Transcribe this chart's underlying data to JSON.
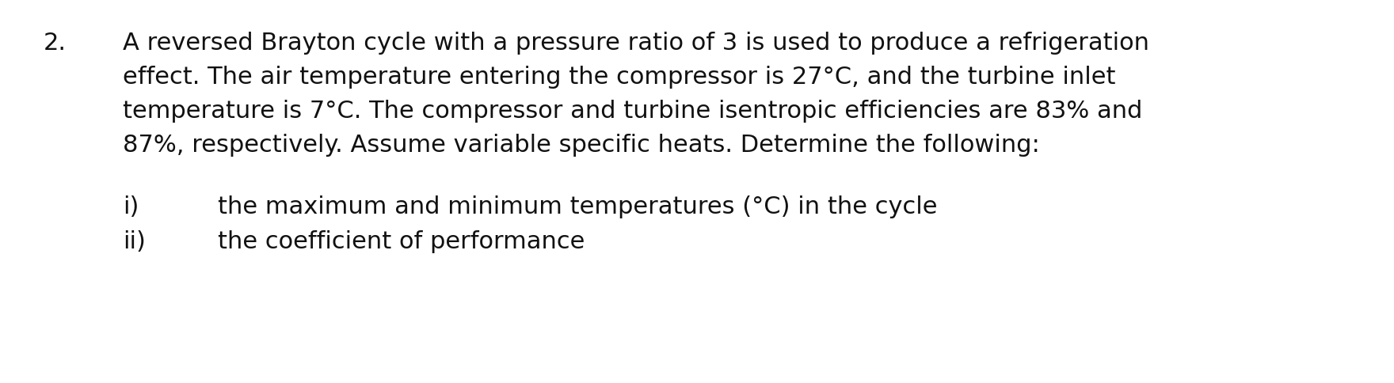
{
  "background_color": "#ffffff",
  "number": "2.",
  "paragraph_lines": [
    "A reversed Brayton cycle with a pressure ratio of 3 is used to produce a refrigeration",
    "effect. The air temperature entering the compressor is 27°C, and the turbine inlet",
    "temperature is 7°C. The compressor and turbine isentropic efficiencies are 83% and",
    "87%, respectively. Assume variable specific heats. Determine the following:"
  ],
  "items": [
    {
      "label": "i)",
      "text": "the maximum and minimum temperatures (°C) in the cycle"
    },
    {
      "label": "ii)",
      "text": "the coefficient of performance"
    }
  ],
  "font_family": "Times New Roman",
  "number_fontsize": 22,
  "paragraph_fontsize": 22,
  "item_fontsize": 22,
  "text_color": "#111111",
  "fig_width": 17.6,
  "fig_height": 4.85,
  "dpi": 100
}
